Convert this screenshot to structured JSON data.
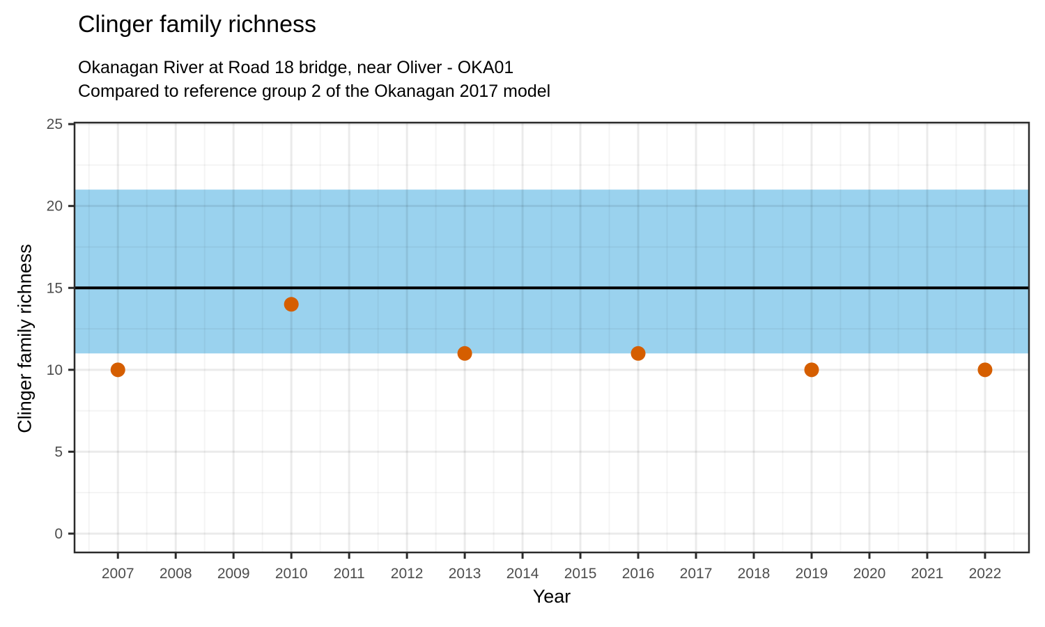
{
  "chart_data": {
    "type": "scatter",
    "title": "Clinger family richness",
    "subtitle_line1": "Okanagan River at Road 18 bridge, near Oliver - OKA01",
    "subtitle_line2": "Compared to reference group 2 of the Okanagan 2017 model",
    "xlabel": "Year",
    "ylabel": "Clinger family richness",
    "x_ticks": [
      2007,
      2008,
      2009,
      2010,
      2011,
      2012,
      2013,
      2014,
      2015,
      2016,
      2017,
      2018,
      2019,
      2020,
      2021,
      2022
    ],
    "y_ticks": [
      0,
      5,
      10,
      15,
      20,
      25
    ],
    "xlim": [
      2006.25,
      2022.76
    ],
    "ylim": [
      -1.15,
      25.09
    ],
    "points": [
      {
        "year": 2007,
        "value": 10
      },
      {
        "year": 2010,
        "value": 14
      },
      {
        "year": 2013,
        "value": 11
      },
      {
        "year": 2016,
        "value": 11
      },
      {
        "year": 2019,
        "value": 10
      },
      {
        "year": 2022,
        "value": 10
      }
    ],
    "reference_band": {
      "low": 11,
      "high": 21
    },
    "reference_line": 15,
    "colors": {
      "point": "#D55E00",
      "band": "#9AD2EE",
      "reference_line": "#000000",
      "panel_border": "#2b2b2b",
      "tick_label": "#4d4d4d"
    },
    "grid": "major+minor",
    "legend": "none"
  }
}
